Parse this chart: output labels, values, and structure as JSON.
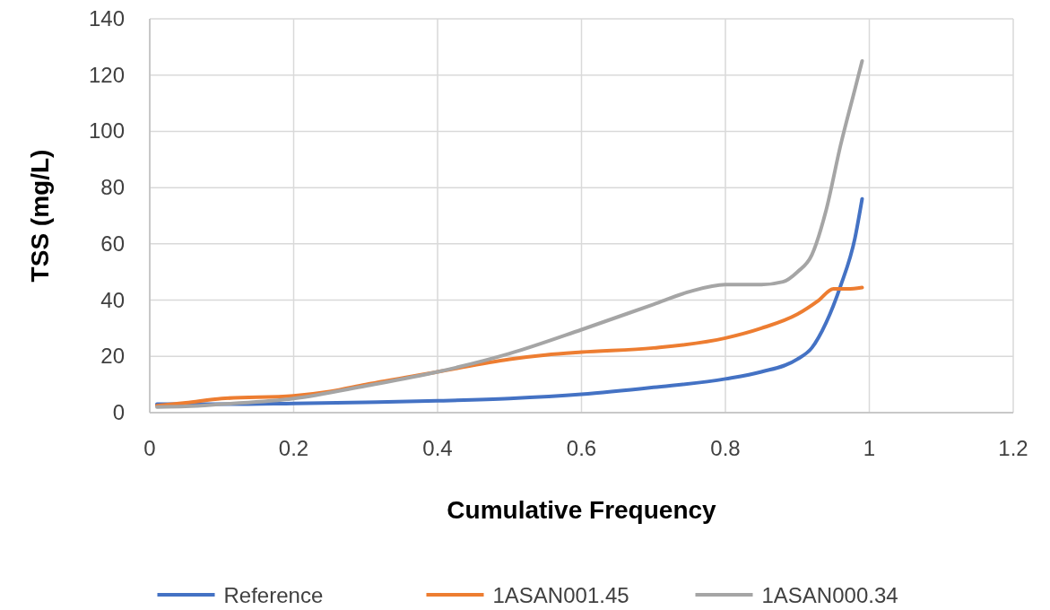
{
  "chart_data": {
    "type": "line",
    "xlabel": "Cumulative Frequency",
    "ylabel": "TSS (mg/L)",
    "xlim": [
      0,
      1.2
    ],
    "xticks": [
      0,
      0.2,
      0.4,
      0.6,
      0.8,
      1,
      1.2
    ],
    "ylim": [
      0,
      140
    ],
    "yticks": [
      0,
      20,
      40,
      60,
      80,
      100,
      120,
      140
    ],
    "grid": true,
    "legend": "bottom",
    "series": [
      {
        "name": "Reference",
        "color": "#4472c4",
        "x": [
          0.01,
          0.1,
          0.2,
          0.3,
          0.4,
          0.5,
          0.6,
          0.7,
          0.8,
          0.85,
          0.9,
          0.92,
          0.94,
          0.96,
          0.98,
          0.99
        ],
        "values": [
          3,
          3,
          3.3,
          3.7,
          4.2,
          5,
          6.5,
          9,
          12,
          14.5,
          19,
          23,
          32,
          45,
          62,
          76
        ]
      },
      {
        "name": "1ASAN001.45",
        "color": "#ed7d31",
        "x": [
          0.01,
          0.05,
          0.1,
          0.2,
          0.25,
          0.3,
          0.4,
          0.5,
          0.55,
          0.6,
          0.7,
          0.8,
          0.85,
          0.9,
          0.93,
          0.95,
          0.97,
          0.99
        ],
        "values": [
          2.5,
          3.5,
          5,
          6,
          7.5,
          10,
          14.5,
          19,
          20.5,
          21.5,
          23,
          26.5,
          30,
          35,
          40,
          44,
          44,
          44.5
        ]
      },
      {
        "name": "1ASAN000.34",
        "color": "#a5a5a5",
        "x": [
          0.01,
          0.05,
          0.1,
          0.2,
          0.3,
          0.4,
          0.5,
          0.6,
          0.7,
          0.75,
          0.8,
          0.85,
          0.88,
          0.9,
          0.92,
          0.94,
          0.96,
          0.98,
          0.99
        ],
        "values": [
          2,
          2.2,
          3,
          5,
          9.5,
          14.5,
          21,
          29.5,
          38.5,
          43,
          45.5,
          45.5,
          46.5,
          50,
          56,
          72,
          95,
          115,
          125
        ]
      }
    ]
  }
}
